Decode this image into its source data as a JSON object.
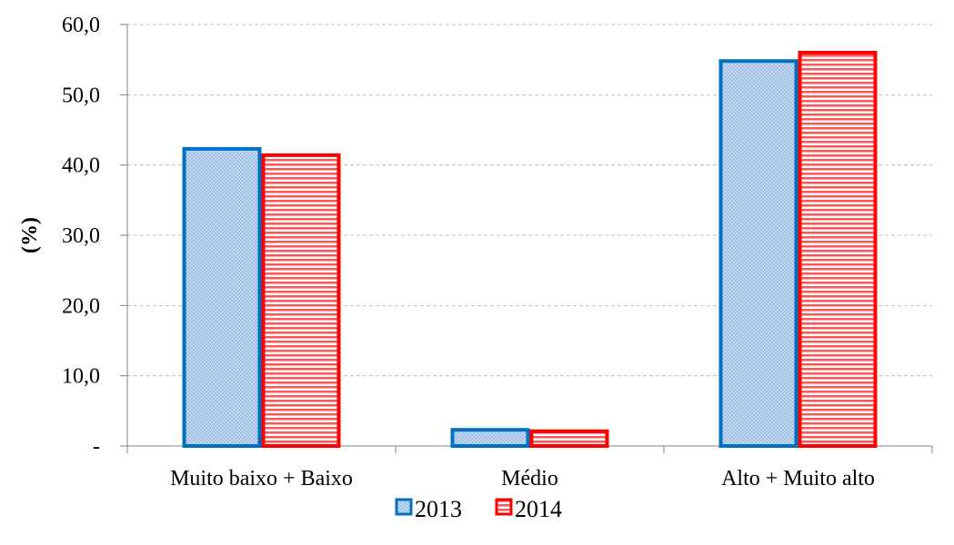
{
  "chart_data": {
    "type": "bar",
    "title": "",
    "xlabel": "",
    "ylabel": "(%)",
    "ylim": [
      0,
      60
    ],
    "yticks": [
      0,
      10,
      20,
      30,
      40,
      50,
      60
    ],
    "ytick_labels": [
      "-",
      "10,0",
      "20,0",
      "30,0",
      "40,0",
      "50,0",
      "60,0"
    ],
    "grid": "horizontal dashed",
    "legend_placement": "bottom-center",
    "categories": [
      "Muito baixo + Baixo",
      "Médio",
      "Alto + Muito alto"
    ],
    "series": [
      {
        "name": "2013",
        "values": [
          42.3,
          2.3,
          54.8
        ],
        "color": "#0070c0",
        "fill": "#c5d9f1",
        "pattern": "dots"
      },
      {
        "name": "2014",
        "values": [
          41.4,
          2.1,
          56.0
        ],
        "color": "#ff0000",
        "fill": "#ffffff",
        "pattern": "horizontal-lines"
      }
    ]
  }
}
